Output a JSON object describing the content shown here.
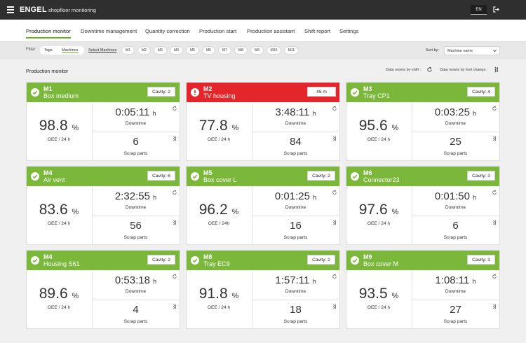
{
  "header": {
    "brand": "ENGEL",
    "subtitle": "shopfloor monitoring",
    "language": "EN",
    "icons": [
      "menu-icon",
      "logout-icon"
    ]
  },
  "nav": {
    "tabs": [
      {
        "label": "Production monitor",
        "active": true
      },
      {
        "label": "Downtime management"
      },
      {
        "label": "Quantity correction"
      },
      {
        "label": "Production start"
      },
      {
        "label": "Production assistant"
      },
      {
        "label": "Shift report"
      },
      {
        "label": "Settings"
      }
    ]
  },
  "filter": {
    "label": "Filter",
    "toggle": {
      "tags": "Tags",
      "machines": "Machines",
      "selected": "Machines"
    },
    "select_machines": "Select Machines",
    "chips": [
      "M1",
      "M2",
      "M3",
      "M4",
      "M5",
      "M6",
      "M7",
      "M8",
      "M9",
      "M10",
      "M11"
    ],
    "sort_label": "Sort by:",
    "sort_value": "Machine name"
  },
  "section": {
    "title": "Production monitor",
    "reset_shift": "Data resets by shift :",
    "reset_tool": "Data resets by tool change :"
  },
  "colors": {
    "ok": "#7ab73a",
    "alert": "#e2262b",
    "accent": "#6ab023",
    "topbar": "#2f2f2f"
  },
  "units": {
    "percent": "%",
    "hours": "h"
  },
  "cards": [
    {
      "id": "M1",
      "name": "Box medium",
      "status": "ok",
      "badge": "Cavity: 2",
      "oee": "98.8",
      "oee_label": "OEE / 24 h",
      "downtime": "0:05:11",
      "downtime_label": "Downtime",
      "scrap": "6",
      "scrap_label": "Scrap parts"
    },
    {
      "id": "M2",
      "name": "TV housing",
      "status": "alert",
      "badge": "45 m",
      "oee": "77.8",
      "oee_label": "OEE / 24 h",
      "downtime": "3:48:11",
      "downtime_label": "Downtime",
      "scrap": "84",
      "scrap_label": "Scrap parts"
    },
    {
      "id": "M3",
      "name": "Tray CP1",
      "status": "ok",
      "badge": "Cavity: 4",
      "oee": "95.6",
      "oee_label": "OEE / 24 h",
      "downtime": "0:03:25",
      "downtime_label": "Downtime",
      "scrap": "25",
      "scrap_label": "Scrap parts"
    },
    {
      "id": "M4",
      "name": "Air vent",
      "status": "ok",
      "badge": "Cavity: 6",
      "oee": "83.6",
      "oee_label": "OEE / 24 h",
      "downtime": "2:32:55",
      "downtime_label": "Downtime",
      "scrap": "56",
      "scrap_label": "Scrap parts"
    },
    {
      "id": "M5",
      "name": "Box cover L",
      "status": "ok",
      "badge": "Cavity: 2",
      "oee": "96.2",
      "oee_label": "OEE / 24h",
      "downtime": "0:01:25",
      "downtime_label": "Downtime",
      "scrap": "16",
      "scrap_label": "Scrap parts"
    },
    {
      "id": "M6",
      "name": "Connector23",
      "status": "ok",
      "badge": "Cavity: 3",
      "oee": "97.6",
      "oee_label": "OEE / 24 h",
      "downtime": "0:01:50",
      "downtime_label": "Downtime",
      "scrap": "6",
      "scrap_label": "Scrap parts"
    },
    {
      "id": "M4",
      "name": "Housing S61",
      "status": "ok",
      "badge": "Cavity: 2",
      "oee": "89.6",
      "oee_label": "OEE / 24 h",
      "downtime": "0:53:18",
      "downtime_label": "Downtime",
      "scrap": "4",
      "scrap_label": "Scrap parts"
    },
    {
      "id": "M8",
      "name": "Tray EC9",
      "status": "ok",
      "badge": "Cavity: 2",
      "oee": "91.8",
      "oee_label": "OEE / 24 h",
      "downtime": "1:57:11",
      "downtime_label": "Downtime",
      "scrap": "18",
      "scrap_label": "Scrap parts"
    },
    {
      "id": "M9",
      "name": "Box cover M",
      "status": "ok",
      "badge": "Cavity: 3",
      "oee": "93.5",
      "oee_label": "OEE / 24 h",
      "downtime": "1:08:11",
      "downtime_label": "Downtime",
      "scrap": "27",
      "scrap_label": "Scrap parts"
    }
  ]
}
